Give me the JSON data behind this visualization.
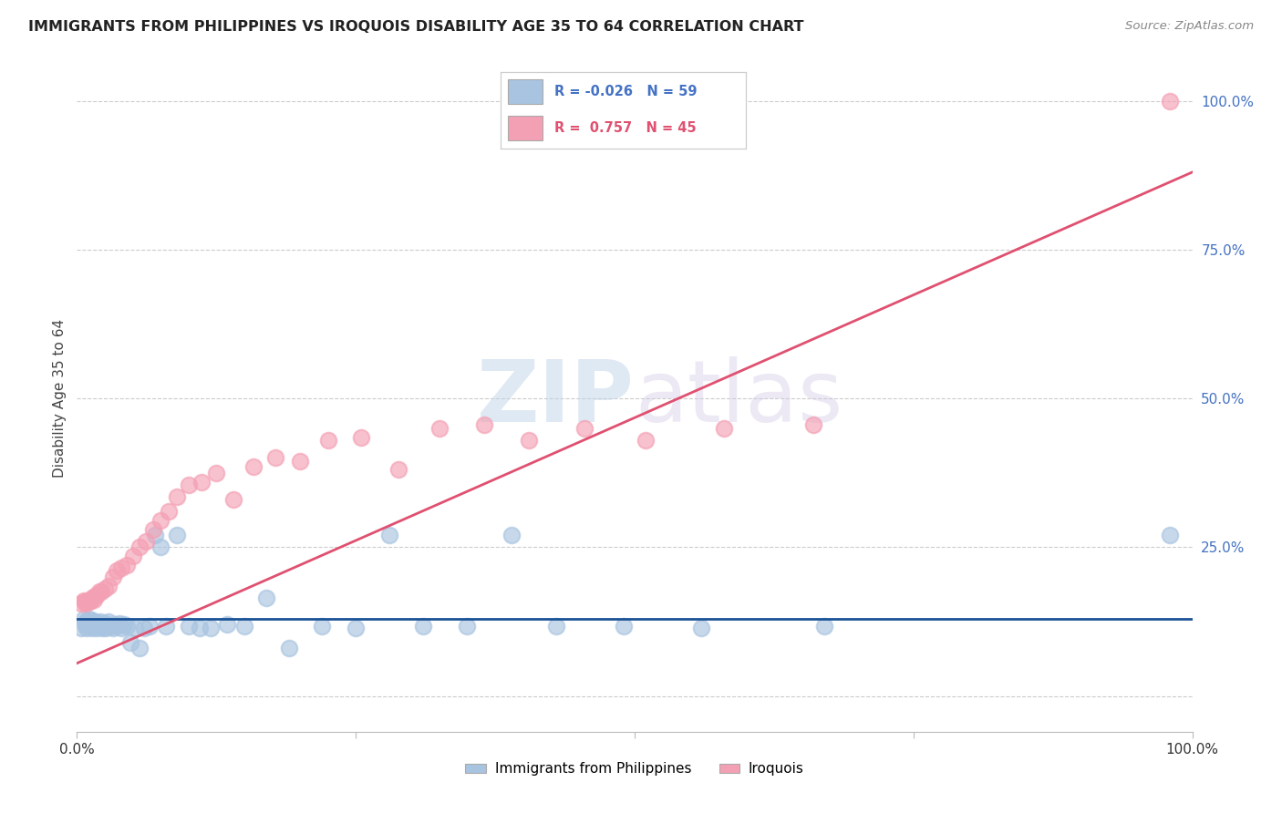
{
  "title": "IMMIGRANTS FROM PHILIPPINES VS IROQUOIS DISABILITY AGE 35 TO 64 CORRELATION CHART",
  "source": "Source: ZipAtlas.com",
  "ylabel": "Disability Age 35 to 64",
  "legend_blue_label": "Immigrants from Philippines",
  "legend_pink_label": "Iroquois",
  "R_blue": -0.026,
  "N_blue": 59,
  "R_pink": 0.757,
  "N_pink": 45,
  "ytick_vals": [
    0.0,
    0.25,
    0.5,
    0.75,
    1.0
  ],
  "xlim": [
    0.0,
    1.0
  ],
  "ylim": [
    -0.06,
    1.06
  ],
  "blue_color": "#a8c4e0",
  "pink_color": "#f4a0b4",
  "blue_line_color": "#1a5296",
  "pink_line_color": "#e05070",
  "watermark_zip": "ZIP",
  "watermark_atlas": "atlas",
  "blue_scatter_x": [
    0.004,
    0.006,
    0.007,
    0.008,
    0.009,
    0.01,
    0.011,
    0.012,
    0.013,
    0.014,
    0.015,
    0.016,
    0.017,
    0.018,
    0.019,
    0.02,
    0.021,
    0.022,
    0.023,
    0.024,
    0.025,
    0.026,
    0.027,
    0.028,
    0.03,
    0.032,
    0.034,
    0.036,
    0.038,
    0.04,
    0.042,
    0.045,
    0.048,
    0.052,
    0.056,
    0.06,
    0.065,
    0.07,
    0.075,
    0.08,
    0.09,
    0.1,
    0.11,
    0.12,
    0.135,
    0.15,
    0.17,
    0.19,
    0.22,
    0.25,
    0.28,
    0.31,
    0.35,
    0.39,
    0.43,
    0.49,
    0.56,
    0.67,
    0.98
  ],
  "blue_scatter_y": [
    0.115,
    0.13,
    0.12,
    0.125,
    0.115,
    0.13,
    0.118,
    0.122,
    0.128,
    0.115,
    0.12,
    0.125,
    0.118,
    0.115,
    0.122,
    0.118,
    0.125,
    0.12,
    0.115,
    0.118,
    0.122,
    0.115,
    0.12,
    0.125,
    0.118,
    0.115,
    0.12,
    0.118,
    0.122,
    0.115,
    0.12,
    0.118,
    0.09,
    0.115,
    0.08,
    0.115,
    0.118,
    0.27,
    0.25,
    0.118,
    0.27,
    0.118,
    0.115,
    0.115,
    0.12,
    0.118,
    0.165,
    0.08,
    0.118,
    0.115,
    0.27,
    0.118,
    0.118,
    0.27,
    0.118,
    0.118,
    0.115,
    0.118,
    0.27
  ],
  "pink_scatter_x": [
    0.004,
    0.006,
    0.007,
    0.008,
    0.009,
    0.01,
    0.011,
    0.012,
    0.014,
    0.015,
    0.016,
    0.018,
    0.02,
    0.022,
    0.025,
    0.028,
    0.032,
    0.036,
    0.04,
    0.045,
    0.05,
    0.056,
    0.062,
    0.068,
    0.075,
    0.082,
    0.09,
    0.1,
    0.112,
    0.125,
    0.14,
    0.158,
    0.178,
    0.2,
    0.225,
    0.255,
    0.288,
    0.325,
    0.365,
    0.405,
    0.455,
    0.51,
    0.58,
    0.66,
    0.98
  ],
  "pink_scatter_y": [
    0.155,
    0.16,
    0.158,
    0.155,
    0.158,
    0.16,
    0.158,
    0.16,
    0.165,
    0.162,
    0.168,
    0.17,
    0.175,
    0.175,
    0.18,
    0.185,
    0.2,
    0.21,
    0.215,
    0.22,
    0.235,
    0.25,
    0.26,
    0.28,
    0.295,
    0.31,
    0.335,
    0.355,
    0.36,
    0.375,
    0.33,
    0.385,
    0.4,
    0.395,
    0.43,
    0.435,
    0.38,
    0.45,
    0.455,
    0.43,
    0.45,
    0.43,
    0.45,
    0.455,
    1.0
  ],
  "blue_line_x0": 0.0,
  "blue_line_x1": 1.0,
  "blue_line_y0": 0.13,
  "blue_line_y1": 0.13,
  "pink_line_x0": 0.0,
  "pink_line_x1": 1.0,
  "pink_line_y0": 0.055,
  "pink_line_y1": 0.88
}
